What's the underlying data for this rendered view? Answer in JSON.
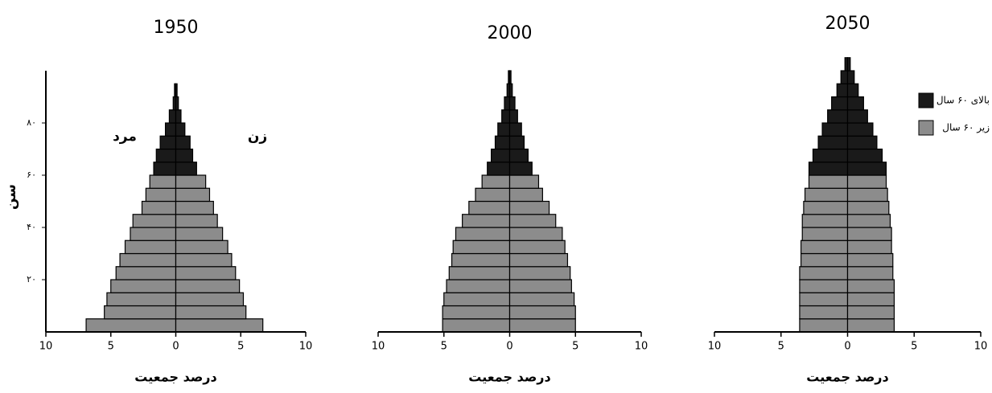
{
  "chart_data": [
    {
      "type": "pyramid",
      "title": "1950",
      "x_label": "درصد جمعیت",
      "y_label": "سن",
      "side_labels": [
        "مرد",
        "زن"
      ],
      "ages": [
        0,
        5,
        10,
        15,
        20,
        25,
        30,
        35,
        40,
        45,
        50,
        55,
        60,
        65,
        70,
        75,
        80,
        85,
        90
      ],
      "left_values": [
        6.9,
        5.5,
        5.3,
        5.0,
        4.6,
        4.3,
        3.9,
        3.5,
        3.3,
        2.6,
        2.3,
        2.0,
        1.7,
        1.5,
        1.2,
        0.8,
        0.5,
        0.2,
        0.1
      ],
      "right_values": [
        6.7,
        5.4,
        5.2,
        4.9,
        4.6,
        4.3,
        4.0,
        3.6,
        3.2,
        2.9,
        2.6,
        2.3,
        1.6,
        1.3,
        1.1,
        0.7,
        0.4,
        0.2,
        0.1
      ],
      "bar_colors": [
        "#8c8c8c",
        "#8c8c8c",
        "#8c8c8c",
        "#8c8c8c",
        "#8c8c8c",
        "#8c8c8c",
        "#8c8c8c",
        "#8c8c8c",
        "#8c8c8c",
        "#8c8c8c",
        "#8c8c8c",
        "#8c8c8c",
        "#1a1a1a",
        "#1a1a1a",
        "#1a1a1a",
        "#1a1a1a",
        "#1a1a1a",
        "#1a1a1a",
        "#1a1a1a"
      ],
      "xlim": [
        -10,
        10
      ],
      "xticks": [
        {
          "value": -10,
          "label": "10"
        },
        {
          "value": -5,
          "label": "5"
        },
        0,
        5,
        10
      ],
      "ylim": [
        0,
        100
      ],
      "yticks": [
        {
          "value": 20,
          "label": "۲۰"
        },
        {
          "value": 40,
          "label": "۴۰"
        },
        {
          "value": 60,
          "label": "۶۰"
        },
        {
          "value": 80,
          "label": "۸۰"
        }
      ]
    },
    {
      "type": "pyramid",
      "title": "2000",
      "x_label": "درصد جمعیت",
      "ages": [
        0,
        5,
        10,
        15,
        20,
        25,
        30,
        35,
        40,
        45,
        50,
        55,
        60,
        65,
        70,
        75,
        80,
        85,
        90,
        95
      ],
      "left_values": [
        5.1,
        5.1,
        5.0,
        4.8,
        4.6,
        4.4,
        4.3,
        4.1,
        3.6,
        3.1,
        2.6,
        2.1,
        1.7,
        1.4,
        1.1,
        0.9,
        0.6,
        0.4,
        0.2,
        0.1
      ],
      "right_values": [
        5.0,
        5.0,
        4.9,
        4.7,
        4.6,
        4.4,
        4.2,
        4.0,
        3.5,
        3.0,
        2.5,
        2.2,
        1.7,
        1.4,
        1.1,
        0.9,
        0.6,
        0.4,
        0.2,
        0.1
      ],
      "bar_colors": [
        "#8c8c8c",
        "#8c8c8c",
        "#8c8c8c",
        "#8c8c8c",
        "#8c8c8c",
        "#8c8c8c",
        "#8c8c8c",
        "#8c8c8c",
        "#8c8c8c",
        "#8c8c8c",
        "#8c8c8c",
        "#8c8c8c",
        "#1a1a1a",
        "#1a1a1a",
        "#1a1a1a",
        "#1a1a1a",
        "#1a1a1a",
        "#1a1a1a",
        "#1a1a1a",
        "#1a1a1a"
      ],
      "xlim": [
        -10,
        10
      ],
      "xticks": [
        {
          "value": -10,
          "label": "10"
        },
        {
          "value": -5,
          "label": "5"
        },
        0,
        5,
        10
      ],
      "ylim": [
        0,
        100
      ]
    },
    {
      "type": "pyramid",
      "title": "2050",
      "x_label": "درصد جمعیت",
      "ages": [
        0,
        5,
        10,
        15,
        20,
        25,
        30,
        35,
        40,
        45,
        50,
        55,
        60,
        65,
        70,
        75,
        80,
        85,
        90,
        95,
        100
      ],
      "left_values": [
        3.6,
        3.6,
        3.6,
        3.6,
        3.6,
        3.5,
        3.5,
        3.4,
        3.4,
        3.3,
        3.2,
        2.9,
        2.9,
        2.6,
        2.2,
        1.9,
        1.5,
        1.2,
        0.8,
        0.5,
        0.2
      ],
      "right_values": [
        3.5,
        3.5,
        3.5,
        3.5,
        3.4,
        3.4,
        3.3,
        3.3,
        3.2,
        3.1,
        3.0,
        2.9,
        2.9,
        2.6,
        2.2,
        1.9,
        1.5,
        1.2,
        0.8,
        0.5,
        0.2
      ],
      "bar_colors": [
        "#8c8c8c",
        "#8c8c8c",
        "#8c8c8c",
        "#8c8c8c",
        "#8c8c8c",
        "#8c8c8c",
        "#8c8c8c",
        "#8c8c8c",
        "#8c8c8c",
        "#8c8c8c",
        "#8c8c8c",
        "#8c8c8c",
        "#1a1a1a",
        "#1a1a1a",
        "#1a1a1a",
        "#1a1a1a",
        "#1a1a1a",
        "#1a1a1a",
        "#1a1a1a",
        "#1a1a1a",
        "#1a1a1a"
      ],
      "xlim": [
        -10,
        10
      ],
      "xticks": [
        {
          "value": -10,
          "label": "10"
        },
        {
          "value": -5,
          "label": "5"
        },
        0,
        5,
        10
      ],
      "ylim": [
        0,
        105
      ],
      "legend": [
        {
          "label": "بالای ۶۰ سال",
          "color": "#1a1a1a"
        },
        {
          "label": "زیر ۶۰ سال",
          "color": "#8c8c8c"
        }
      ]
    }
  ]
}
